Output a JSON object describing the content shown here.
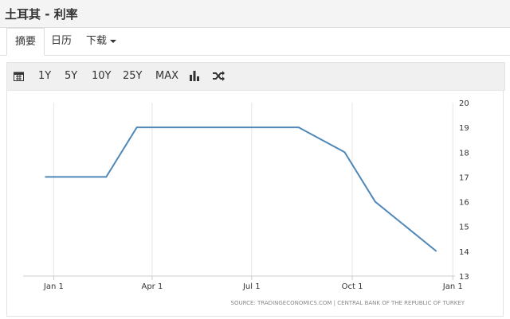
{
  "header": {
    "title": "土耳其 - 利率"
  },
  "tabs": [
    "摘要",
    "日历",
    "下载"
  ],
  "toolbar": [
    "1Y",
    "5Y",
    "10Y",
    "25Y",
    "MAX"
  ],
  "chart_data": {
    "type": "line",
    "x": [
      -8,
      48,
      76,
      224,
      266,
      294,
      350
    ],
    "values": [
      17,
      17,
      19,
      19,
      18,
      16,
      14
    ],
    "color": "#4e87b8",
    "xlim": [
      -28,
      367
    ],
    "xticks": [
      {
        "value": 0,
        "label": "Jan 1"
      },
      {
        "value": 90,
        "label": "Apr 1"
      },
      {
        "value": 181,
        "label": "Jul 1"
      },
      {
        "value": 273,
        "label": "Oct 1"
      },
      {
        "value": 365,
        "label": "Jan 1"
      }
    ],
    "ylim": [
      13,
      20
    ],
    "yticks": [
      13,
      14,
      15,
      16,
      17,
      18,
      19,
      20
    ],
    "grid": true,
    "source": "SOURCE: TRADINGECONOMICS.COM | CENTRAL BANK OF THE REPUBLIC OF TURKEY"
  }
}
